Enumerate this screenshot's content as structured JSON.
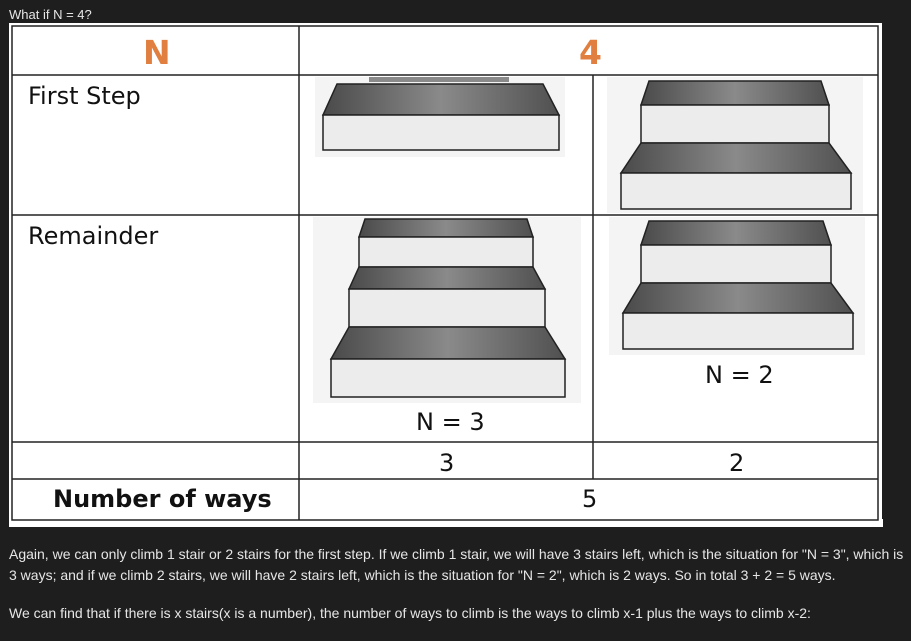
{
  "question": "What if N = 4?",
  "table": {
    "header_left": "N",
    "header_right": "4",
    "row_first_step": "First Step",
    "row_remainder": "Remainder",
    "remainder_left_label": "N = 3",
    "remainder_right_label": "N = 2",
    "count_left": "3",
    "count_right": "2",
    "row_ways": "Number of ways",
    "total_ways": "5"
  },
  "paragraphs": [
    "Again, we can only climb 1 stair or 2 stairs for the first step. If we climb 1 stair, we will have 3 stairs left, which is the situation for \"N = 3\", which is 3 ways; and if we climb 2 stairs, we will have 2 stairs left, which is the situation for \"N = 2\", which is 2 ways. So in total 3 + 2 = 5 ways.",
    "We can find that if there is x stairs(x is a number), the number of ways to climb is the ways to climb x-1 plus the ways to climb x-2:"
  ],
  "colors": {
    "accent": "#e07f3f",
    "background": "#1e1e1e",
    "text": "#e6e6e6"
  }
}
